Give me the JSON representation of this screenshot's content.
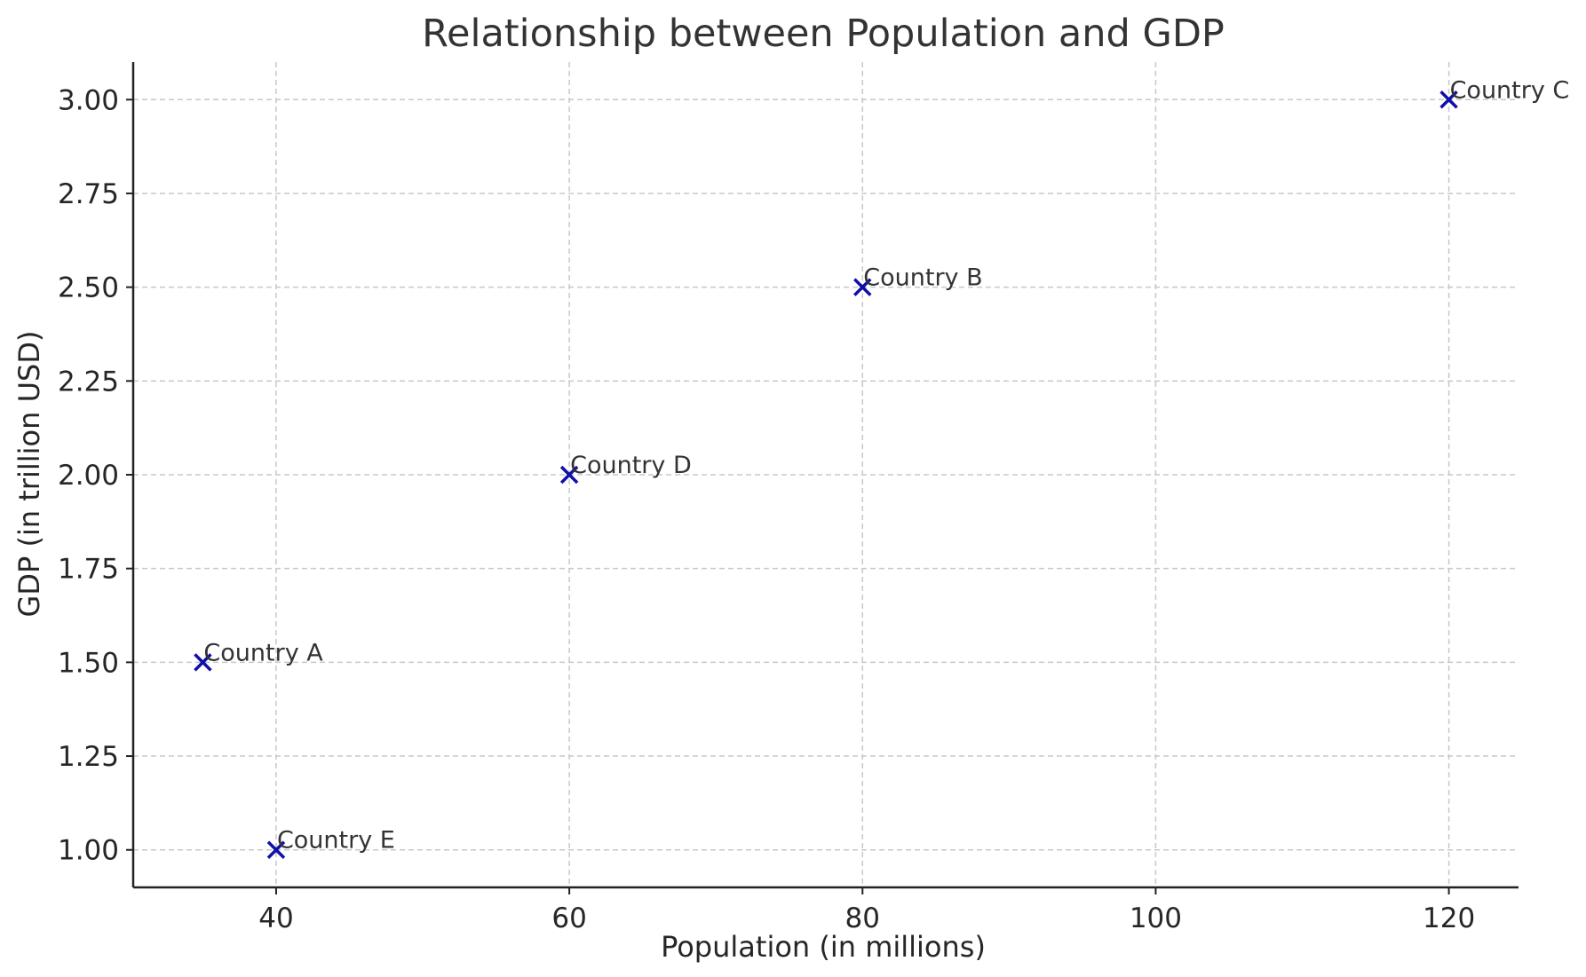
{
  "chart_data": {
    "type": "scatter",
    "title": "Relationship between Population and GDP",
    "xlabel": "Population (in millions)",
    "ylabel": "GDP (in trillion USD)",
    "xlim": [
      30.25,
      124.75
    ],
    "ylim": [
      0.9,
      3.1
    ],
    "xticks": [
      40,
      60,
      80,
      100,
      120
    ],
    "xtick_labels": [
      "40",
      "60",
      "80",
      "100",
      "120"
    ],
    "yticks": [
      1.0,
      1.25,
      1.5,
      1.75,
      2.0,
      2.25,
      2.5,
      2.75,
      3.0
    ],
    "ytick_labels": [
      "1.00",
      "1.25",
      "1.50",
      "1.75",
      "2.00",
      "2.25",
      "2.50",
      "2.75",
      "3.00"
    ],
    "grid": true,
    "marker": "x",
    "marker_color": "#1010a8",
    "points": [
      {
        "label": "Country A",
        "x": 35,
        "y": 1.5
      },
      {
        "label": "Country B",
        "x": 80,
        "y": 2.5
      },
      {
        "label": "Country C",
        "x": 120,
        "y": 3.0
      },
      {
        "label": "Country D",
        "x": 60,
        "y": 2.0
      },
      {
        "label": "Country E",
        "x": 40,
        "y": 1.0
      }
    ]
  }
}
